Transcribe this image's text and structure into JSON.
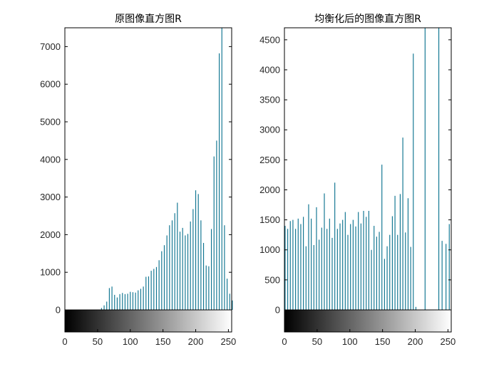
{
  "bar_color": "#0e7490",
  "chart_data": [
    {
      "type": "bar",
      "title": "原图像直方图R",
      "xlabel": "",
      "ylabel": "",
      "xlim": [
        0,
        255
      ],
      "ylim": [
        0,
        7500
      ],
      "xticks": [
        0,
        50,
        100,
        150,
        200,
        250
      ],
      "yticks": [
        0,
        1000,
        2000,
        3000,
        4000,
        5000,
        6000,
        7000
      ],
      "colorbar_range": [
        0,
        255
      ],
      "x": [
        56,
        60,
        64,
        68,
        72,
        76,
        80,
        84,
        88,
        92,
        96,
        100,
        104,
        108,
        112,
        116,
        120,
        124,
        128,
        132,
        136,
        140,
        144,
        148,
        152,
        156,
        160,
        164,
        168,
        172,
        176,
        180,
        184,
        188,
        192,
        196,
        200,
        204,
        208,
        212,
        216,
        220,
        224,
        228,
        232,
        236,
        240,
        244,
        248,
        252,
        256
      ],
      "values": [
        50,
        120,
        220,
        580,
        620,
        400,
        330,
        420,
        450,
        420,
        430,
        480,
        470,
        460,
        520,
        560,
        620,
        880,
        890,
        1040,
        1090,
        1140,
        1320,
        1560,
        1720,
        1980,
        2250,
        2380,
        2570,
        2850,
        2080,
        2180,
        1980,
        2020,
        2350,
        2680,
        3180,
        3080,
        2380,
        1780,
        1180,
        1160,
        2150,
        4080,
        4500,
        6820,
        7500,
        2250,
        830,
        430,
        250
      ]
    },
    {
      "type": "bar",
      "title": "均衡化后的图像直方图R",
      "xlabel": "",
      "ylabel": "",
      "xlim": [
        0,
        255
      ],
      "ylim": [
        0,
        4700
      ],
      "xticks": [
        0,
        50,
        100,
        150,
        200,
        250
      ],
      "yticks": [
        0,
        500,
        1000,
        1500,
        2000,
        2500,
        3000,
        3500,
        4000,
        4500
      ],
      "colorbar_range": [
        0,
        255
      ],
      "x": [
        1,
        5,
        9,
        13,
        17,
        21,
        25,
        29,
        33,
        37,
        41,
        45,
        49,
        53,
        57,
        61,
        65,
        69,
        73,
        77,
        81,
        85,
        89,
        93,
        97,
        101,
        105,
        109,
        113,
        117,
        121,
        125,
        129,
        133,
        137,
        141,
        145,
        149,
        153,
        157,
        161,
        165,
        169,
        173,
        177,
        181,
        185,
        189,
        193,
        197,
        201,
        215,
        236,
        241,
        247,
        252
      ],
      "values": [
        1400,
        1350,
        1480,
        1500,
        1350,
        1520,
        1430,
        1550,
        1060,
        1760,
        1520,
        1080,
        1710,
        1170,
        1370,
        1940,
        1350,
        1520,
        1200,
        2120,
        1350,
        1440,
        1500,
        1630,
        1250,
        1430,
        1500,
        1390,
        1630,
        1440,
        1650,
        1550,
        1650,
        1000,
        1400,
        1220,
        1300,
        2420,
        850,
        1060,
        1250,
        1560,
        1900,
        1250,
        1930,
        2870,
        1290,
        1860,
        1050,
        4270,
        50,
        4700,
        4700,
        1150,
        1100,
        1430
      ]
    }
  ]
}
